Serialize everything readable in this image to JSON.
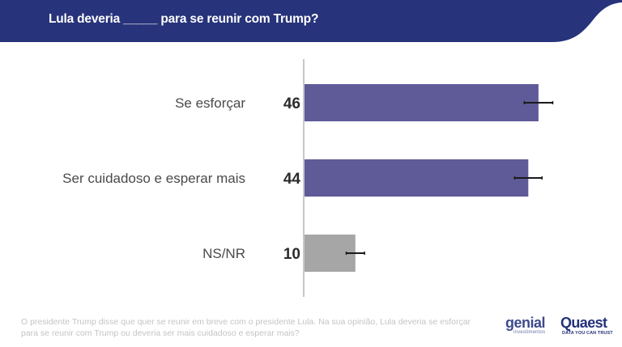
{
  "header": {
    "title": "Lula deveria _____ para se reunir com Trump?",
    "background_color": "#27337a"
  },
  "chart_data": {
    "type": "bar",
    "orientation": "horizontal",
    "title": "Lula deveria _____ para se reunir com Trump?",
    "xlabel": "",
    "ylabel": "",
    "xlim": [
      0,
      50
    ],
    "grid": false,
    "categories": [
      "Se esforçar",
      "Ser cuidadoso e esperar mais",
      "NS/NR"
    ],
    "values": [
      46,
      44,
      10
    ],
    "value_labels": [
      "46",
      "44",
      "10"
    ],
    "error_margin": [
      2.8,
      2.7,
      1.8
    ],
    "colors": [
      "#5f5b98",
      "#5f5b98",
      "#a6a6a6"
    ]
  },
  "footnote": "O presidente Trump disse que quer se reunir em breve com o presidente Lula. Na sua opinião, Lula deveria se esforçar para se reunir com Trump ou deveria ser mais cuidadoso e esperar mais?",
  "logos": {
    "genial": "genial",
    "genial_sub": "investimentos",
    "quaest": "Quaest",
    "quaest_sub": "DATA YOU CAN TRUST"
  }
}
